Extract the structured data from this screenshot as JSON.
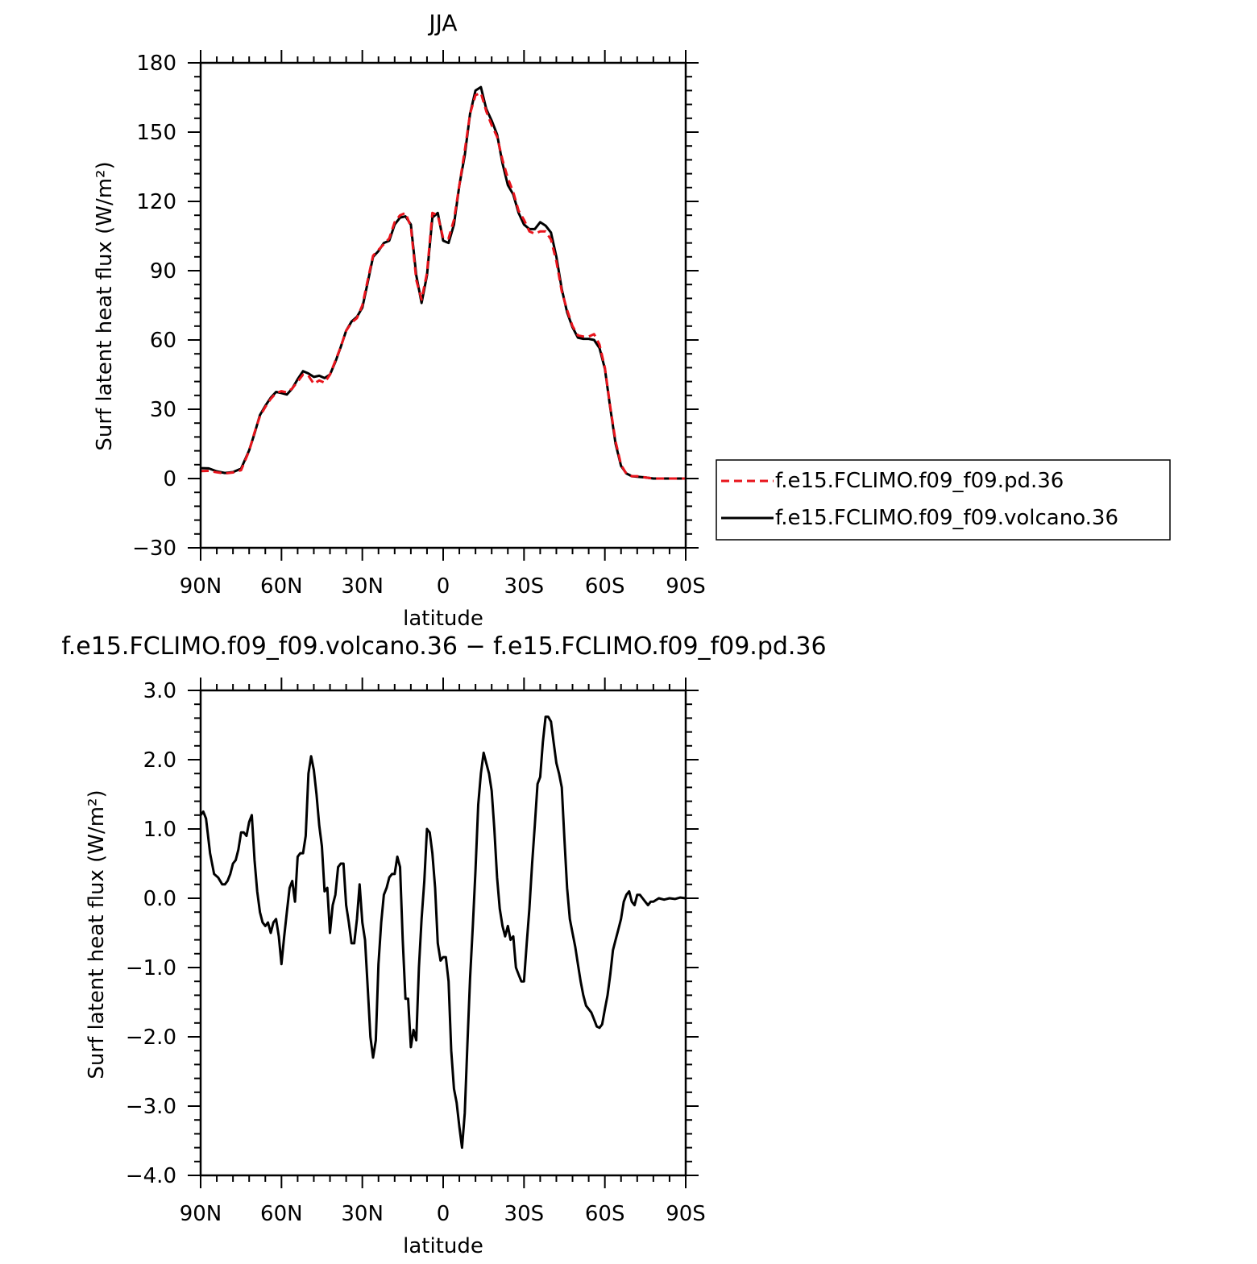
{
  "chart_data": [
    {
      "type": "line",
      "title": "JJA",
      "xlabel": "latitude",
      "ylabel": "Surf latent heat flux (W/m²)",
      "xlim": [
        90,
        -90
      ],
      "ylim": [
        -30,
        180
      ],
      "x_ticks": [
        90,
        60,
        30,
        0,
        -30,
        -60,
        -90
      ],
      "x_tick_labels": [
        "90N",
        "60N",
        "30N",
        "0",
        "30S",
        "60S",
        "90S"
      ],
      "y_ticks": [
        -30,
        0,
        30,
        60,
        90,
        120,
        150,
        180
      ],
      "y_tick_labels": [
        "−30",
        "0",
        "30",
        "60",
        "90",
        "120",
        "150",
        "180"
      ],
      "legend": "right",
      "series": [
        {
          "name": "f.e15.FCLIMO.f09_f09.pd.36",
          "color": "#e8141c",
          "dash": "dashed",
          "x": [
            90,
            87,
            84,
            81,
            78,
            75,
            72,
            70,
            68,
            66,
            64,
            62,
            60,
            58,
            56,
            54,
            52,
            50,
            48,
            46,
            44,
            42,
            40,
            38,
            36,
            34,
            32,
            30,
            28,
            26,
            24,
            22,
            20,
            18,
            16,
            14,
            12,
            10,
            8,
            6,
            4,
            2,
            0,
            -2,
            -4,
            -6,
            -8,
            -10,
            -12,
            -14,
            -16,
            -18,
            -20,
            -22,
            -24,
            -26,
            -28,
            -30,
            -32,
            -34,
            -36,
            -38,
            -40,
            -42,
            -44,
            -46,
            -48,
            -50,
            -52,
            -54,
            -56,
            -58,
            -60,
            -62,
            -64,
            -66,
            -68,
            -70,
            -72,
            -75,
            -78,
            -81,
            -84,
            -87,
            -90
          ],
          "y": [
            3.2,
            3.3,
            2.7,
            2.2,
            2.6,
            3.6,
            12,
            20,
            27,
            31,
            34.5,
            37,
            37.8,
            37.3,
            39,
            42,
            45,
            44.5,
            41,
            42.5,
            41.5,
            45,
            51,
            57,
            64,
            67.5,
            69.5,
            75,
            86,
            96.5,
            99,
            101.5,
            104,
            111,
            114,
            115,
            109,
            86,
            77.5,
            89,
            115,
            114,
            104,
            104,
            112,
            127,
            142,
            158,
            166,
            167,
            159,
            153,
            148,
            138,
            130,
            124,
            116,
            112,
            107,
            106,
            107,
            107,
            103.5,
            94,
            81,
            73,
            66,
            62,
            61.5,
            61.5,
            62.5,
            58,
            48,
            31,
            16,
            6,
            2,
            1,
            1,
            0.5,
            0,
            0,
            0,
            0,
            0
          ]
        },
        {
          "name": "f.e15.FCLIMO.f09_f09.volcano.36",
          "color": "#000000",
          "dash": "solid",
          "x": [
            90,
            87,
            84,
            81,
            78,
            75,
            72,
            70,
            68,
            66,
            64,
            62,
            60,
            58,
            56,
            54,
            52,
            50,
            48,
            46,
            44,
            42,
            40,
            38,
            36,
            34,
            32,
            30,
            28,
            26,
            24,
            22,
            20,
            18,
            16,
            14,
            12,
            10,
            8,
            6,
            4,
            2,
            0,
            -2,
            -4,
            -6,
            -8,
            -10,
            -12,
            -14,
            -16,
            -18,
            -20,
            -22,
            -24,
            -26,
            -28,
            -30,
            -32,
            -34,
            -36,
            -38,
            -40,
            -42,
            -44,
            -46,
            -48,
            -50,
            -52,
            -54,
            -56,
            -58,
            -60,
            -62,
            -64,
            -66,
            -68,
            -70,
            -72,
            -75,
            -78,
            -81,
            -84,
            -87,
            -90
          ],
          "y": [
            4.5,
            4.4,
            3.1,
            2.4,
            2.8,
            4.3,
            12.2,
            19.5,
            27.5,
            31.5,
            35,
            37.5,
            37,
            36.4,
            39,
            43,
            46.5,
            45.5,
            44,
            44.5,
            43.5,
            45,
            50.5,
            57,
            64,
            68,
            70,
            74,
            85,
            96,
            98.5,
            102,
            103,
            110,
            113,
            113.5,
            110,
            88,
            76,
            88,
            113,
            115,
            103,
            102,
            110,
            127,
            140,
            158,
            168,
            169.5,
            160,
            155,
            149,
            136.5,
            127,
            123,
            115,
            110,
            108,
            108,
            111,
            109.5,
            106.5,
            96,
            82,
            72,
            65.5,
            61,
            60.5,
            60.5,
            60,
            56.5,
            47.5,
            30.5,
            15,
            5.5,
            2.2,
            1,
            0.8,
            0.5,
            0,
            0,
            0,
            0,
            0
          ]
        }
      ]
    },
    {
      "type": "line",
      "title": "f.e15.FCLIMO.f09_f09.volcano.36 − f.e15.FCLIMO.f09_f09.pd.36",
      "xlabel": "latitude",
      "ylabel": "Surf latent heat flux (W/m²)",
      "xlim": [
        90,
        -90
      ],
      "ylim": [
        -4.0,
        3.0
      ],
      "x_ticks": [
        90,
        60,
        30,
        0,
        -30,
        -60,
        -90
      ],
      "x_tick_labels": [
        "90N",
        "60N",
        "30N",
        "0",
        "30S",
        "60S",
        "90S"
      ],
      "y_ticks": [
        -4.0,
        -3.0,
        -2.0,
        -1.0,
        0.0,
        1.0,
        2.0,
        3.0
      ],
      "y_tick_labels": [
        "−4.0",
        "−3.0",
        "−2.0",
        "−1.0",
        "0.0",
        "1.0",
        "2.0",
        "3.0"
      ],
      "series": [
        {
          "color": "#000000",
          "dash": "solid",
          "x": [
            90,
            89,
            88,
            86.5,
            85,
            83.5,
            82,
            81,
            80,
            79,
            78,
            77,
            76,
            75,
            74,
            73,
            72,
            71,
            70,
            69,
            68,
            67,
            66,
            65,
            64,
            63,
            62,
            61,
            60,
            59,
            58,
            57,
            56,
            55,
            54,
            53,
            52,
            51,
            50,
            49,
            48,
            47,
            46,
            45,
            44,
            43,
            42,
            41,
            40,
            39,
            38,
            37,
            36,
            35,
            34,
            33,
            32,
            31,
            30,
            29,
            28,
            27,
            26,
            25,
            24,
            23,
            22,
            21,
            20,
            19,
            18,
            17,
            16,
            15,
            14,
            13,
            12,
            11,
            10,
            9,
            8,
            7,
            6,
            5,
            4,
            3,
            2,
            1,
            0,
            -1,
            -2,
            -3,
            -4,
            -5,
            -6,
            -7,
            -8,
            -9,
            -10,
            -11,
            -12,
            -13,
            -14,
            -15,
            -16,
            -17,
            -18,
            -19,
            -20,
            -21,
            -22,
            -23,
            -24,
            -25,
            -26,
            -27,
            -28,
            -29,
            -30,
            -31,
            -32,
            -33,
            -34,
            -35,
            -36,
            -37,
            -38,
            -39,
            -40,
            -41,
            -42,
            -43,
            -44,
            -45,
            -46,
            -47,
            -48,
            -49,
            -50,
            -51,
            -52,
            -53,
            -54,
            -55,
            -56,
            -57,
            -58,
            -59,
            -60,
            -61,
            -62,
            -63,
            -64,
            -65,
            -66,
            -67,
            -68,
            -69,
            -70,
            -71,
            -72,
            -73,
            -74,
            -75,
            -76,
            -77,
            -78,
            -80,
            -82,
            -84,
            -86,
            -88,
            -90
          ],
          "y": [
            1.2,
            1.25,
            1.15,
            0.65,
            0.35,
            0.3,
            0.2,
            0.2,
            0.25,
            0.35,
            0.5,
            0.55,
            0.7,
            0.95,
            0.95,
            0.9,
            1.1,
            1.2,
            0.55,
            0.1,
            -0.2,
            -0.35,
            -0.4,
            -0.35,
            -0.5,
            -0.35,
            -0.3,
            -0.55,
            -0.95,
            -0.55,
            -0.2,
            0.15,
            0.25,
            -0.05,
            0.6,
            0.65,
            0.65,
            0.9,
            1.8,
            2.05,
            1.85,
            1.5,
            1.05,
            0.75,
            0.1,
            0.15,
            -0.5,
            -0.1,
            0.05,
            0.45,
            0.5,
            0.5,
            -0.1,
            -0.35,
            -0.65,
            -0.65,
            -0.3,
            0.2,
            -0.35,
            -0.6,
            -1.3,
            -2.0,
            -2.3,
            -2.05,
            -0.95,
            -0.35,
            0.05,
            0.15,
            0.3,
            0.35,
            0.35,
            0.6,
            0.45,
            -0.6,
            -1.45,
            -1.45,
            -2.15,
            -1.9,
            -2.05,
            -1.0,
            -0.3,
            0.25,
            1.0,
            0.95,
            0.65,
            0.15,
            -0.65,
            -0.9,
            -0.85,
            -0.85,
            -1.2,
            -2.2,
            -2.75,
            -2.95,
            -3.3,
            -3.6,
            -3.1,
            -2.1,
            -1.15,
            -0.4,
            0.4,
            1.35,
            1.8,
            2.1,
            1.95,
            1.8,
            1.55,
            1.0,
            0.3,
            -0.15,
            -0.4,
            -0.55,
            -0.4,
            -0.6,
            -0.55,
            -1.0,
            -1.1,
            -1.2,
            -1.2,
            -0.65,
            -0.15,
            0.5,
            1.05,
            1.65,
            1.75,
            2.25,
            2.62,
            2.62,
            2.55,
            2.25,
            1.95,
            1.8,
            1.6,
            0.85,
            0.15,
            -0.3,
            -0.5,
            -0.7,
            -0.95,
            -1.2,
            -1.4,
            -1.55,
            -1.6,
            -1.65,
            -1.75,
            -1.85,
            -1.87,
            -1.82,
            -1.6,
            -1.4,
            -1.1,
            -0.75,
            -0.6,
            -0.45,
            -0.3,
            -0.05,
            0.05,
            0.1,
            -0.05,
            -0.1,
            0.05,
            0.05,
            0.0,
            -0.05,
            -0.1,
            -0.05,
            -0.05,
            0.0,
            -0.02,
            0.0,
            -0.01,
            0.01,
            0.0
          ]
        }
      ]
    }
  ]
}
